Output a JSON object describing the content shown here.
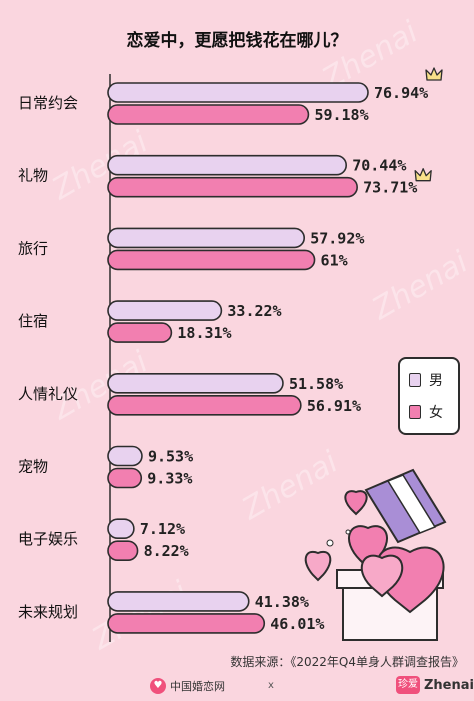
{
  "title": "恋爱中，更愿把钱花在哪儿？",
  "legend": {
    "male": "男",
    "female": "女"
  },
  "source": "数据来源：《2022年Q4单身人群调查报告》",
  "footer": {
    "logo1_text": "中国婚恋网",
    "logo_separator": "x",
    "logo2_badge": "珍爱",
    "logo2_text": "Zhenai"
  },
  "watermark": "Zhenai",
  "colors": {
    "background": "#fad6df",
    "male_bar": "#e8d2ef",
    "female_bar": "#f27fb0",
    "outline": "#2d2d2d",
    "crown": "#f8e08a"
  },
  "chart_data": {
    "type": "bar",
    "orientation": "horizontal",
    "title": "恋爱中，更愿把钱花在哪儿？",
    "categories": [
      "日常约会",
      "礼物",
      "旅行",
      "住宿",
      "人情礼仪",
      "宠物",
      "电子娱乐",
      "未来规划"
    ],
    "series": [
      {
        "name": "男",
        "values": [
          76.94,
          70.44,
          57.92,
          33.22,
          51.58,
          9.53,
          7.12,
          41.38
        ],
        "labels": [
          "76.94%",
          "70.44%",
          "57.92%",
          "33.22%",
          "51.58%",
          "9.53%",
          "7.12%",
          "41.38%"
        ]
      },
      {
        "name": "女",
        "values": [
          59.18,
          73.71,
          61,
          18.31,
          56.91,
          9.33,
          8.22,
          46.01
        ],
        "labels": [
          "59.18%",
          "73.71%",
          "61%",
          "18.31%",
          "56.91%",
          "9.33%",
          "8.22%",
          "46.01%"
        ]
      }
    ],
    "unit": "%",
    "legend_position": "right",
    "highlight": [
      {
        "category": "日常约会",
        "series": "男",
        "marker": "crown"
      },
      {
        "category": "礼物",
        "series": "女",
        "marker": "crown"
      }
    ]
  }
}
